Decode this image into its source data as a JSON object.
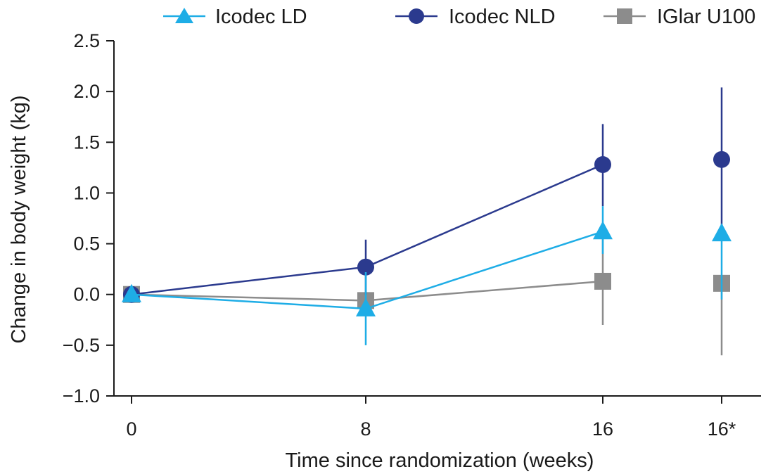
{
  "chart_data": {
    "type": "line",
    "xlabel": "Time since randomization (weeks)",
    "ylabel": "Change in body weight (kg)",
    "categories": [
      "0",
      "8",
      "16",
      "16*"
    ],
    "ylim": [
      -1.0,
      2.5
    ],
    "yticks": [
      "2.5",
      "2.0",
      "1.5",
      "1.0",
      "0.5",
      "0.0",
      "−0.5",
      "−1.0"
    ],
    "ytick_values": [
      2.5,
      2.0,
      1.5,
      1.0,
      0.5,
      0.0,
      -0.5,
      -1.0
    ],
    "grid": false,
    "legend_position": "top",
    "series": [
      {
        "name": "Icodec LD",
        "marker": "triangle",
        "color": "#1EADE6",
        "values": [
          0.0,
          -0.14,
          0.62,
          0.6
        ],
        "err_low": [
          0.0,
          -0.5,
          0.4,
          -0.05
        ],
        "err_high": [
          0.0,
          0.22,
          0.87,
          0.6
        ],
        "connect_last": false
      },
      {
        "name": "Icodec NLD",
        "marker": "circle",
        "color": "#2B3A8E",
        "values": [
          0.0,
          0.27,
          1.28,
          1.33
        ],
        "err_low": [
          0.0,
          0.0,
          0.87,
          0.62
        ],
        "err_high": [
          0.0,
          0.54,
          1.68,
          2.04
        ],
        "connect_last": false
      },
      {
        "name": "IGlar U100",
        "marker": "square",
        "color": "#8C8C8C",
        "values": [
          0.0,
          -0.06,
          0.13,
          0.11
        ],
        "err_low": [
          0.0,
          -0.06,
          -0.3,
          -0.6
        ],
        "err_high": [
          0.0,
          -0.06,
          0.56,
          0.11
        ],
        "connect_last": false
      }
    ]
  }
}
